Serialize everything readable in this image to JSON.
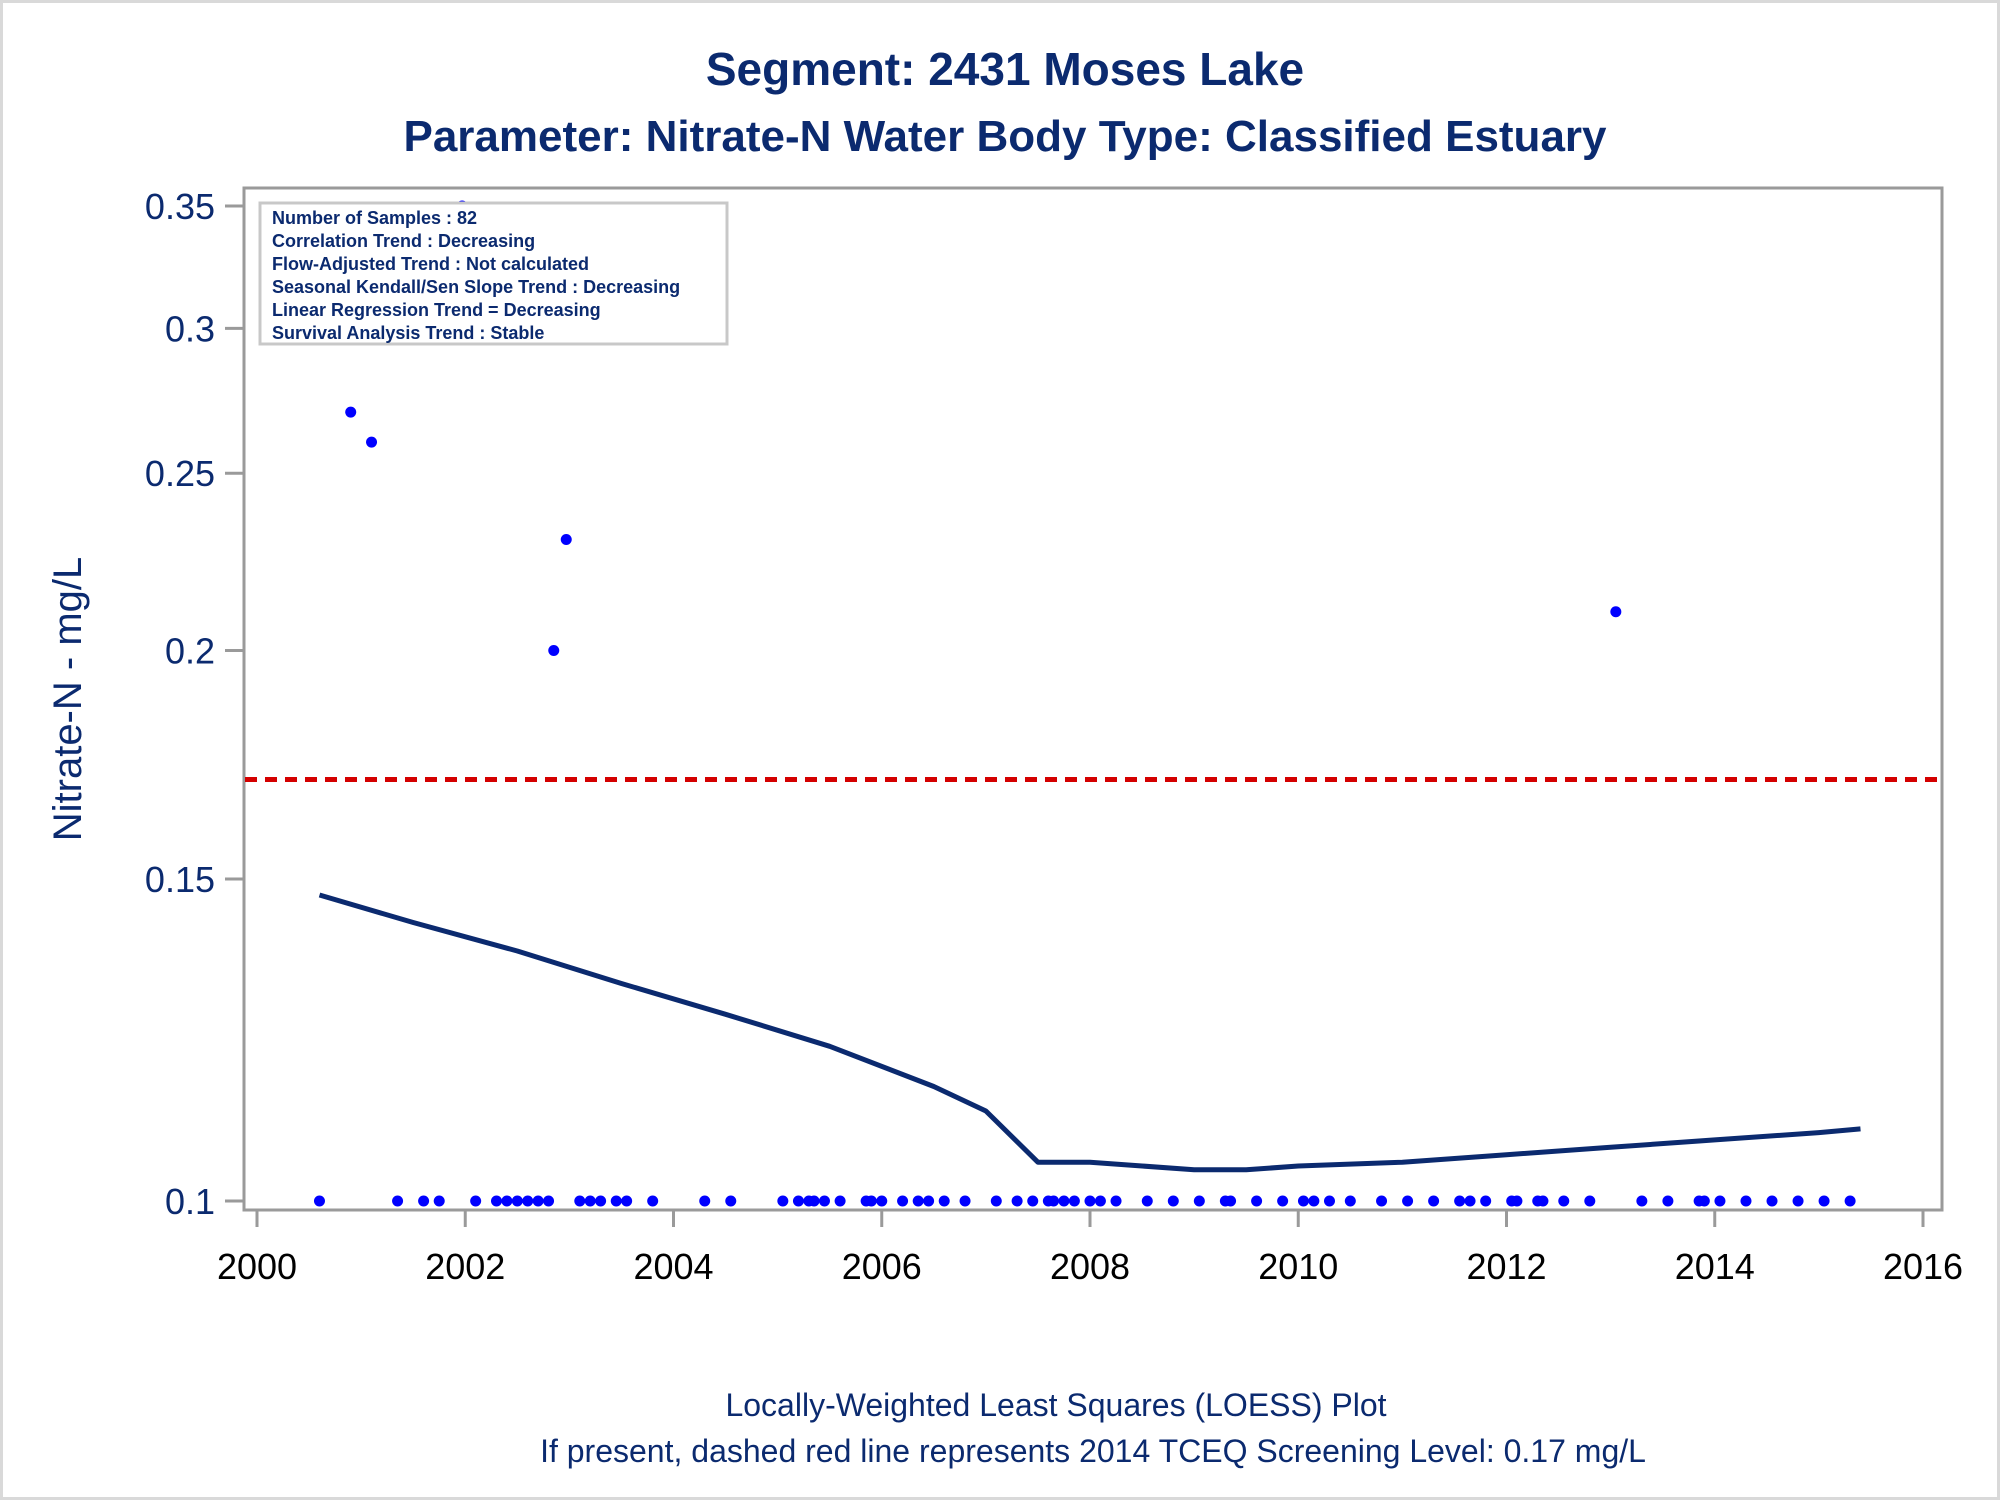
{
  "title": "Segment: 2431  Moses Lake",
  "subtitle": "Parameter: Nitrate-N   Water Body Type: Classified Estuary",
  "footnote_1": "Locally-Weighted Least Squares (LOESS) Plot",
  "footnote_2": "If present, dashed red line represents 2014 TCEQ Screening Level: 0.17 mg/L",
  "info_box": [
    "Number of Samples : 82",
    "Correlation Trend : Decreasing",
    "Flow-Adjusted Trend : Not calculated",
    "Seasonal Kendall/Sen Slope Trend : Decreasing",
    "Linear Regression Trend = Decreasing",
    "Survival Analysis Trend : Stable"
  ],
  "colors": {
    "points": "#0000ff",
    "loess": "#0b2a6f",
    "screening_line": "#d40000",
    "text": "#0b2a6f",
    "axis": "#9a9a9a"
  },
  "chart_data": {
    "type": "scatter",
    "ylabel": "Nitrate-N - mg/L",
    "xlabel": "",
    "xlim": [
      2000,
      2016
    ],
    "ylim": [
      0.1,
      0.35
    ],
    "y_scale": "log",
    "xticks": [
      "2000",
      "2002",
      "2004",
      "2006",
      "2008",
      "2010",
      "2012",
      "2014",
      "2016"
    ],
    "yticks": [
      "0.1",
      "0.15",
      "0.2",
      "0.25",
      "0.3",
      "0.35"
    ],
    "screening_level": 0.17,
    "series": [
      {
        "values_x": [
          2000.6,
          2001.35,
          2001.6,
          2001.75,
          2002.1,
          2002.3,
          2002.4,
          2002.5,
          2002.6,
          2002.7,
          2002.8,
          2003.1,
          2003.2,
          2003.3,
          2003.45,
          2003.55,
          2003.8,
          2004.3,
          2004.55,
          2005.05,
          2005.2,
          2005.3,
          2005.35,
          2005.45,
          2005.6,
          2005.85,
          2005.9,
          2006.0,
          2006.2,
          2006.35,
          2006.45,
          2006.6,
          2006.8,
          2007.1,
          2007.3,
          2007.45,
          2007.6,
          2007.65,
          2007.75,
          2007.85,
          2008.0,
          2008.1,
          2008.25,
          2008.55,
          2008.8,
          2009.05,
          2009.3,
          2009.35,
          2009.6,
          2009.85,
          2010.05,
          2010.15,
          2010.3,
          2010.5,
          2010.8,
          2011.05,
          2011.3,
          2011.55,
          2011.65,
          2011.8,
          2012.05,
          2012.1,
          2012.3,
          2012.35,
          2012.55,
          2012.8,
          2013.3,
          2013.55,
          2013.85,
          2013.9,
          2014.05,
          2014.3,
          2014.55,
          2014.8,
          2015.05,
          2015.3,
          2000.9,
          2001.1,
          2001.97,
          2002.85,
          2002.97,
          2013.05
        ],
        "values_y": [
          0.1,
          0.1,
          0.1,
          0.1,
          0.1,
          0.1,
          0.1,
          0.1,
          0.1,
          0.1,
          0.1,
          0.1,
          0.1,
          0.1,
          0.1,
          0.1,
          0.1,
          0.1,
          0.1,
          0.1,
          0.1,
          0.1,
          0.1,
          0.1,
          0.1,
          0.1,
          0.1,
          0.1,
          0.1,
          0.1,
          0.1,
          0.1,
          0.1,
          0.1,
          0.1,
          0.1,
          0.1,
          0.1,
          0.1,
          0.1,
          0.1,
          0.1,
          0.1,
          0.1,
          0.1,
          0.1,
          0.1,
          0.1,
          0.1,
          0.1,
          0.1,
          0.1,
          0.1,
          0.1,
          0.1,
          0.1,
          0.1,
          0.1,
          0.1,
          0.1,
          0.1,
          0.1,
          0.1,
          0.1,
          0.1,
          0.1,
          0.1,
          0.1,
          0.1,
          0.1,
          0.1,
          0.1,
          0.1,
          0.1,
          0.1,
          0.1,
          0.27,
          0.26,
          0.35,
          0.2,
          0.23,
          0.21
        ]
      }
    ],
    "loess_x": [
      2000.6,
      2001.5,
      2002.5,
      2003.5,
      2004.5,
      2005.5,
      2006.5,
      2007.0,
      2007.5,
      2008.0,
      2008.5,
      2009.0,
      2009.5,
      2010.0,
      2011.0,
      2012.0,
      2013.0,
      2014.0,
      2015.0,
      2015.4
    ],
    "loess_y": [
      0.147,
      0.142,
      0.137,
      0.1315,
      0.1265,
      0.1215,
      0.1155,
      0.112,
      0.105,
      0.105,
      0.1045,
      0.104,
      0.104,
      0.1045,
      0.105,
      0.106,
      0.107,
      0.108,
      0.109,
      0.1095
    ]
  }
}
